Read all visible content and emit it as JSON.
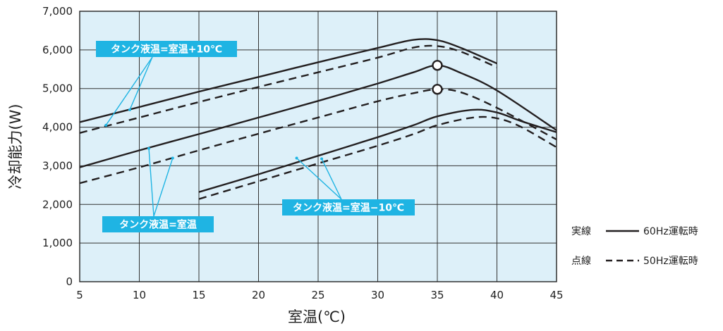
{
  "chart_data": {
    "type": "line",
    "title": "",
    "xlabel": "室温(℃)",
    "ylabel": "冷却能力(W)",
    "xlim": [
      5,
      45
    ],
    "ylim": [
      0,
      7000
    ],
    "x_ticks": [
      5,
      10,
      15,
      20,
      25,
      30,
      35,
      40,
      45
    ],
    "y_ticks": [
      0,
      1000,
      2000,
      3000,
      4000,
      5000,
      6000,
      7000
    ],
    "x_tick_labels": [
      "5",
      "10",
      "15",
      "20",
      "25",
      "30",
      "35",
      "40",
      "45"
    ],
    "y_tick_labels": [
      "0",
      "1,000",
      "2,000",
      "3,000",
      "4,000",
      "5,000",
      "6,000",
      "7,000"
    ],
    "grid": true,
    "plot_background": "#ddf0f9",
    "series": [
      {
        "group": "タンク液温=室温+10℃",
        "style": "solid",
        "points": [
          [
            5,
            4130
          ],
          [
            10,
            4520
          ],
          [
            15,
            4920
          ],
          [
            20,
            5300
          ],
          [
            25,
            5680
          ],
          [
            30,
            6050
          ],
          [
            33,
            6260
          ],
          [
            35,
            6250
          ],
          [
            37,
            6050
          ],
          [
            40,
            5650
          ]
        ]
      },
      {
        "group": "タンク液温=室温+10℃",
        "style": "dashed",
        "points": [
          [
            5,
            3850
          ],
          [
            10,
            4250
          ],
          [
            15,
            4650
          ],
          [
            20,
            5040
          ],
          [
            25,
            5420
          ],
          [
            30,
            5800
          ],
          [
            33,
            6060
          ],
          [
            35,
            6100
          ],
          [
            37,
            5950
          ],
          [
            40,
            5550
          ]
        ]
      },
      {
        "group": "タンク液温=室温",
        "style": "solid",
        "points": [
          [
            5,
            2960
          ],
          [
            10,
            3400
          ],
          [
            15,
            3820
          ],
          [
            20,
            4250
          ],
          [
            25,
            4680
          ],
          [
            30,
            5130
          ],
          [
            33,
            5420
          ],
          [
            35,
            5600
          ],
          [
            37,
            5400
          ],
          [
            40,
            4950
          ],
          [
            45,
            3920
          ]
        ]
      },
      {
        "group": "タンク液温=室温",
        "style": "dashed",
        "points": [
          [
            5,
            2550
          ],
          [
            10,
            2960
          ],
          [
            15,
            3400
          ],
          [
            20,
            3830
          ],
          [
            25,
            4250
          ],
          [
            30,
            4670
          ],
          [
            33,
            4880
          ],
          [
            35,
            4980
          ],
          [
            37,
            4900
          ],
          [
            40,
            4500
          ],
          [
            45,
            3680
          ]
        ]
      },
      {
        "group": "タンク液温=室温−10℃",
        "style": "solid",
        "points": [
          [
            15,
            2320
          ],
          [
            20,
            2780
          ],
          [
            25,
            3260
          ],
          [
            30,
            3740
          ],
          [
            33,
            4050
          ],
          [
            35,
            4280
          ],
          [
            38,
            4450
          ],
          [
            40,
            4380
          ],
          [
            42,
            4160
          ],
          [
            45,
            3870
          ]
        ]
      },
      {
        "group": "タンク液温=室温−10℃",
        "style": "dashed",
        "points": [
          [
            15,
            2140
          ],
          [
            20,
            2600
          ],
          [
            25,
            3060
          ],
          [
            30,
            3520
          ],
          [
            33,
            3820
          ],
          [
            35,
            4050
          ],
          [
            38,
            4250
          ],
          [
            40,
            4230
          ],
          [
            42,
            4010
          ],
          [
            45,
            3480
          ]
        ]
      }
    ],
    "markers": [
      {
        "x": 35,
        "y": 5600,
        "shape": "open-circle"
      },
      {
        "x": 35,
        "y": 4980,
        "shape": "open-circle"
      }
    ],
    "callouts": [
      {
        "text": "タンク液温=室温+10℃",
        "color": "#1fb4e3",
        "leaders": [
          [
            7.2,
            4050
          ],
          [
            9.2,
            4450
          ]
        ]
      },
      {
        "text": "タンク液温=室温",
        "color": "#1fb4e3",
        "leaders": [
          [
            10.8,
            3450
          ],
          [
            12.8,
            3200
          ]
        ]
      },
      {
        "text": "タンク液温=室温−10℃",
        "color": "#1fb4e3",
        "leaders": [
          [
            23.2,
            3200
          ],
          [
            25.3,
            3180
          ]
        ]
      }
    ],
    "legend": {
      "placement": "right",
      "items": [
        {
          "label": "実線",
          "style": "solid",
          "desc": "60Hz運転時"
        },
        {
          "label": "点線",
          "style": "dashed",
          "desc": "50Hz運転時"
        }
      ]
    }
  }
}
